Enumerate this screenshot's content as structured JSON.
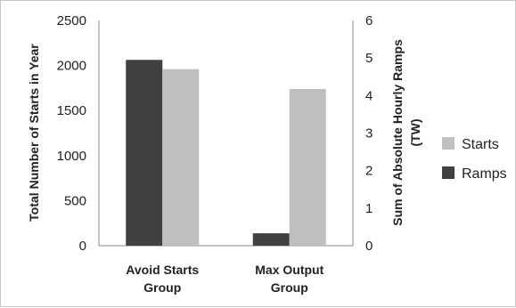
{
  "chart_data": {
    "type": "bar",
    "categories": [
      [
        "Avoid Starts",
        "Group"
      ],
      [
        "Max Output",
        "Group"
      ]
    ],
    "series": [
      {
        "name": "Ramps",
        "axis": "right",
        "color": "#404040",
        "values": [
          4.95,
          0.33
        ]
      },
      {
        "name": "Starts",
        "axis": "left",
        "color": "#bfbfbf",
        "values": [
          1960,
          1740
        ]
      }
    ],
    "y_left": {
      "label": "Total Number of Starts in Year",
      "lim": [
        0,
        2500
      ],
      "ticks": [
        "0",
        "500",
        "1000",
        "1500",
        "2000",
        "2500"
      ]
    },
    "y_right": {
      "label": [
        "Sum of Absolute Hourly Ramps",
        "(TW)"
      ],
      "lim": [
        0,
        6
      ],
      "ticks": [
        "0",
        "1",
        "2",
        "3",
        "4",
        "5",
        "6"
      ]
    },
    "legend": {
      "placement": "right",
      "order": [
        "Starts",
        "Ramps"
      ]
    },
    "grid": false
  }
}
